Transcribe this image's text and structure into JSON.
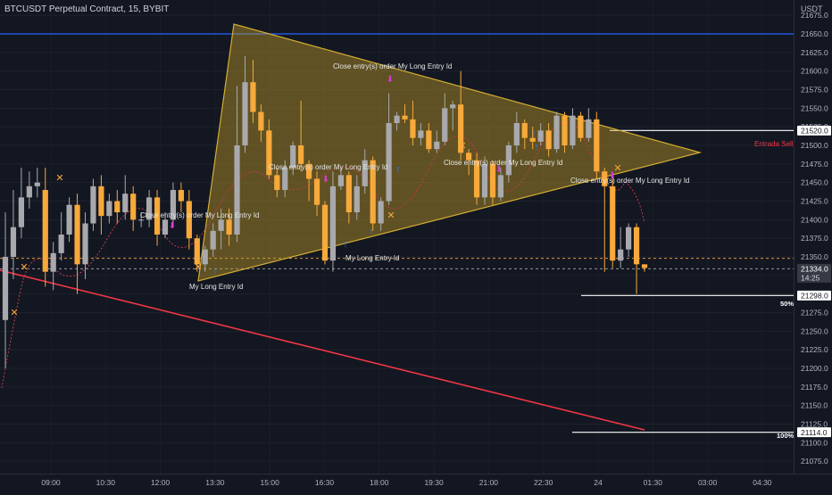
{
  "header": {
    "title": "BTCUSDT Perpetual Contract, 15, BYBIT"
  },
  "price_axis": {
    "currency": "USDT",
    "tick_labels": [
      "21675.0",
      "21650.0",
      "21625.0",
      "21600.0",
      "21575.0",
      "21550.0",
      "21525.0",
      "21500.0",
      "21475.0",
      "21450.0",
      "21425.0",
      "21400.0",
      "21375.0",
      "21350.0",
      "21325.0",
      "21300.0",
      "21275.0",
      "21250.0",
      "21225.0",
      "21200.0",
      "21175.0",
      "21150.0",
      "21125.0",
      "21100.0",
      "21075.0"
    ],
    "price_labels": [
      {
        "text": "21520.0",
        "value": 21520,
        "style": "white"
      },
      {
        "text": "21334.0",
        "value": 21334,
        "style": "gray"
      },
      {
        "text": "14:25",
        "value": 21322,
        "style": "gray-sub"
      },
      {
        "text": "21298.0",
        "value": 21298,
        "style": "white"
      },
      {
        "text": "21114.0",
        "value": 21114,
        "style": "white"
      }
    ]
  },
  "time_axis": {
    "labels": [
      "09:00",
      "10:30",
      "12:00",
      "13:30",
      "15:00",
      "16:30",
      "18:00",
      "19:30",
      "21:00",
      "22:30",
      "24",
      "01:30",
      "03:00",
      "04:30"
    ]
  },
  "annotations": {
    "entrada_sell": "Entrada Sell",
    "pct_50": "50%",
    "pct_100": "100%",
    "close_labels": [
      "Close entry(s) order My Long Entry Id",
      "Close entry(s) order My Long Entry Id",
      "Close entry(s) order My Long Entry Id",
      "Close entry(s) order My Long Entry Id",
      "Close entry(s) order My Long Entry Id"
    ],
    "long_labels": [
      "My Long Entry Id",
      "My Long Entry Id"
    ]
  },
  "colors": {
    "background": "#131722",
    "bull_candle": "#a9a9ad",
    "bear_candle": "#f7a93b",
    "triangle_fill": "#c9a227",
    "blue_line": "#2962ff",
    "red_line": "#f23645",
    "axis_text": "#b2b5be"
  },
  "chart_data": {
    "type": "candlestick",
    "title": "BTCUSDT Perpetual Contract, 15, BYBIT",
    "y_unit": "USDT",
    "ylim": [
      21062,
      21686
    ],
    "x_tick_labels": [
      "09:00",
      "10:30",
      "12:00",
      "13:30",
      "15:00",
      "16:30",
      "18:00",
      "19:30",
      "21:00",
      "22:30",
      "24",
      "01:30",
      "03:00",
      "04:30"
    ],
    "horizontal_levels": [
      {
        "value": 21650,
        "color": "#2962ff"
      },
      {
        "value": 21520,
        "color": "#ffffff",
        "label": "Entrada Sell"
      },
      {
        "value": 21298,
        "color": "#ffffff",
        "label": "50%"
      },
      {
        "value": 21114,
        "color": "#ffffff",
        "label": "100%"
      },
      {
        "value": 21334,
        "color": "#a9a9ad",
        "style": "dashed"
      },
      {
        "value": 21348,
        "color": "#f7a93b",
        "style": "dashed"
      }
    ],
    "candles": [
      [
        21265,
        21350,
        21200,
        21410
      ],
      [
        21350,
        21390,
        21320,
        21440
      ],
      [
        21390,
        21430,
        21375,
        21470
      ],
      [
        21430,
        21445,
        21415,
        21465
      ],
      [
        21445,
        21450,
        21430,
        21470
      ],
      [
        21440,
        21330,
        21310,
        21470
      ],
      [
        21330,
        21355,
        21305,
        21370
      ],
      [
        21355,
        21380,
        21345,
        21410
      ],
      [
        21380,
        21420,
        21370,
        21430
      ],
      [
        21420,
        21340,
        21300,
        21435
      ],
      [
        21340,
        21395,
        21320,
        21410
      ],
      [
        21395,
        21445,
        21385,
        21455
      ],
      [
        21445,
        21405,
        21380,
        21460
      ],
      [
        21405,
        21425,
        21395,
        21435
      ],
      [
        21425,
        21410,
        21395,
        21440
      ],
      [
        21410,
        21435,
        21400,
        21460
      ],
      [
        21435,
        21400,
        21385,
        21445
      ],
      [
        21400,
        21400,
        21390,
        21410
      ],
      [
        21400,
        21430,
        21390,
        21440
      ],
      [
        21430,
        21380,
        21365,
        21440
      ],
      [
        21380,
        21400,
        21375,
        21410
      ],
      [
        21400,
        21440,
        21390,
        21450
      ],
      [
        21440,
        21425,
        21410,
        21450
      ],
      [
        21425,
        21375,
        21360,
        21440
      ],
      [
        21375,
        21340,
        21330,
        21380
      ],
      [
        21340,
        21360,
        21330,
        21365
      ],
      [
        21360,
        21385,
        21350,
        21395
      ],
      [
        21385,
        21400,
        21360,
        21415
      ],
      [
        21400,
        21380,
        21365,
        21415
      ],
      [
        21380,
        21500,
        21370,
        21580
      ],
      [
        21500,
        21585,
        21490,
        21620
      ],
      [
        21585,
        21545,
        21530,
        21615
      ],
      [
        21545,
        21520,
        21505,
        21555
      ],
      [
        21520,
        21460,
        21455,
        21535
      ],
      [
        21460,
        21440,
        21430,
        21470
      ],
      [
        21440,
        21470,
        21430,
        21480
      ],
      [
        21470,
        21500,
        21460,
        21505
      ],
      [
        21500,
        21475,
        21465,
        21560
      ],
      [
        21475,
        21455,
        21425,
        21480
      ],
      [
        21455,
        21420,
        21405,
        21465
      ],
      [
        21420,
        21345,
        21340,
        21425
      ],
      [
        21345,
        21445,
        21330,
        21465
      ],
      [
        21445,
        21460,
        21440,
        21470
      ],
      [
        21460,
        21410,
        21395,
        21465
      ],
      [
        21410,
        21445,
        21400,
        21460
      ],
      [
        21445,
        21480,
        21435,
        21495
      ],
      [
        21480,
        21395,
        21385,
        21485
      ],
      [
        21395,
        21425,
        21385,
        21430
      ],
      [
        21425,
        21530,
        21420,
        21570
      ],
      [
        21530,
        21540,
        21520,
        21545
      ],
      [
        21540,
        21535,
        21530,
        21555
      ],
      [
        21535,
        21510,
        21500,
        21560
      ],
      [
        21510,
        21520,
        21500,
        21530
      ],
      [
        21520,
        21495,
        21490,
        21530
      ],
      [
        21495,
        21505,
        21490,
        21520
      ],
      [
        21505,
        21550,
        21500,
        21570
      ],
      [
        21550,
        21555,
        21520,
        21560
      ],
      [
        21555,
        21490,
        21480,
        21600
      ],
      [
        21490,
        21480,
        21460,
        21495
      ],
      [
        21480,
        21430,
        21420,
        21490
      ],
      [
        21430,
        21475,
        21420,
        21485
      ],
      [
        21475,
        21430,
        21420,
        21480
      ],
      [
        21430,
        21460,
        21425,
        21470
      ],
      [
        21460,
        21500,
        21450,
        21505
      ],
      [
        21500,
        21530,
        21490,
        21545
      ],
      [
        21530,
        21510,
        21495,
        21535
      ],
      [
        21510,
        21505,
        21495,
        21525
      ],
      [
        21505,
        21520,
        21500,
        21530
      ],
      [
        21520,
        21495,
        21485,
        21530
      ],
      [
        21495,
        21540,
        21490,
        21545
      ],
      [
        21540,
        21500,
        21490,
        21545
      ],
      [
        21500,
        21540,
        21495,
        21550
      ],
      [
        21540,
        21510,
        21505,
        21545
      ],
      [
        21510,
        21535,
        21505,
        21550
      ],
      [
        21535,
        21465,
        21455,
        21545
      ],
      [
        21465,
        21445,
        21330,
        21470
      ],
      [
        21445,
        21345,
        21335,
        21455
      ],
      [
        21345,
        21360,
        21335,
        21390
      ],
      [
        21360,
        21390,
        21350,
        21395
      ],
      [
        21390,
        21340,
        21300,
        21395
      ],
      [
        21340,
        21335,
        21330,
        21340
      ]
    ]
  }
}
